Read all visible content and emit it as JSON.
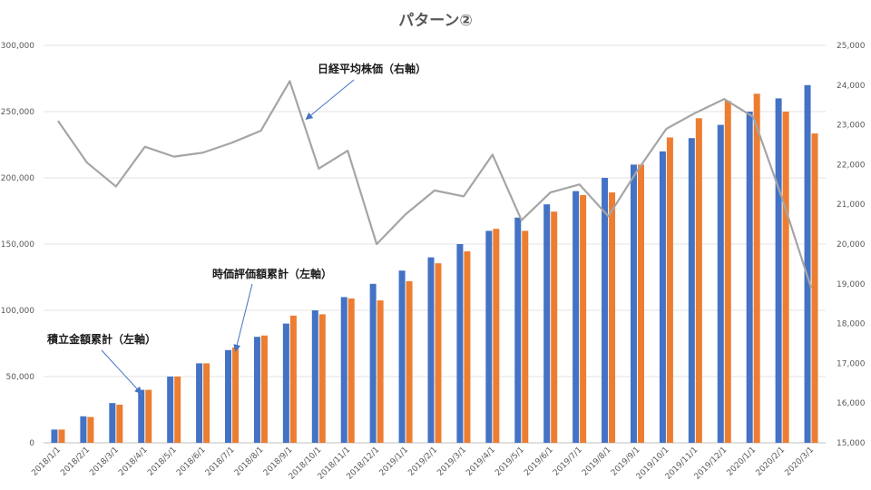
{
  "chart_data": {
    "type": "bar",
    "title": "パターン②",
    "categories": [
      "2018/1/1",
      "2018/2/1",
      "2018/3/1",
      "2018/4/1",
      "2018/5/1",
      "2018/6/1",
      "2018/7/1",
      "2018/8/1",
      "2018/9/1",
      "2018/10/1",
      "2018/11/1",
      "2018/12/1",
      "2019/1/1",
      "2019/2/1",
      "2019/3/1",
      "2019/4/1",
      "2019/5/1",
      "2019/6/1",
      "2019/7/1",
      "2019/8/1",
      "2019/9/1",
      "2019/10/1",
      "2019/11/1",
      "2019/12/1",
      "2020/1/1",
      "2020/2/1",
      "2020/3/1"
    ],
    "series": [
      {
        "name": "積立金額累計（左軸）",
        "type": "bar",
        "axis": "left",
        "color": "#4472C4",
        "values": [
          10000,
          20000,
          30000,
          40000,
          50000,
          60000,
          70000,
          80000,
          90000,
          100000,
          110000,
          120000,
          130000,
          140000,
          150000,
          160000,
          170000,
          180000,
          190000,
          200000,
          210000,
          220000,
          230000,
          240000,
          250000,
          260000,
          270000
        ]
      },
      {
        "name": "時価評価額累計（左軸）",
        "type": "bar",
        "axis": "left",
        "color": "#ED7D31",
        "values": [
          10000,
          19500,
          28800,
          40000,
          50000,
          60000,
          72000,
          81000,
          96000,
          97000,
          109000,
          107500,
          122000,
          135500,
          144500,
          161500,
          160000,
          174500,
          187000,
          189000,
          210000,
          230500,
          245000,
          258000,
          263500,
          250000,
          233500
        ]
      },
      {
        "name": "日経平均株価（右軸）",
        "type": "line",
        "axis": "right",
        "color": "#A5A5A5",
        "values": [
          23100,
          22050,
          21450,
          22450,
          22200,
          22300,
          22550,
          22850,
          24100,
          21900,
          22350,
          20000,
          20750,
          21350,
          21200,
          22250,
          20600,
          21300,
          21500,
          20700,
          21850,
          22900,
          23300,
          23650,
          23200,
          21150,
          18900
        ]
      }
    ],
    "left_axis": {
      "ylim": [
        0,
        300000
      ],
      "ticks": [
        "0",
        "50,000",
        "100,000",
        "150,000",
        "200,000",
        "250,000",
        "300,000"
      ]
    },
    "right_axis": {
      "ylim": [
        15000,
        25000
      ],
      "ticks": [
        "15,000",
        "16,000",
        "17,000",
        "18,000",
        "19,000",
        "20,000",
        "21,000",
        "22,000",
        "23,000",
        "24,000",
        "25,000"
      ]
    },
    "grid": true,
    "annotations": [
      {
        "text": "日経平均株価（右軸）",
        "target_series": 2,
        "target_index": 8
      },
      {
        "text": "時価評価額累計（左軸）",
        "target_series": 1,
        "target_index": 6
      },
      {
        "text": "積立金額累計（左軸）",
        "target_series": 0,
        "target_index": 3
      }
    ]
  }
}
